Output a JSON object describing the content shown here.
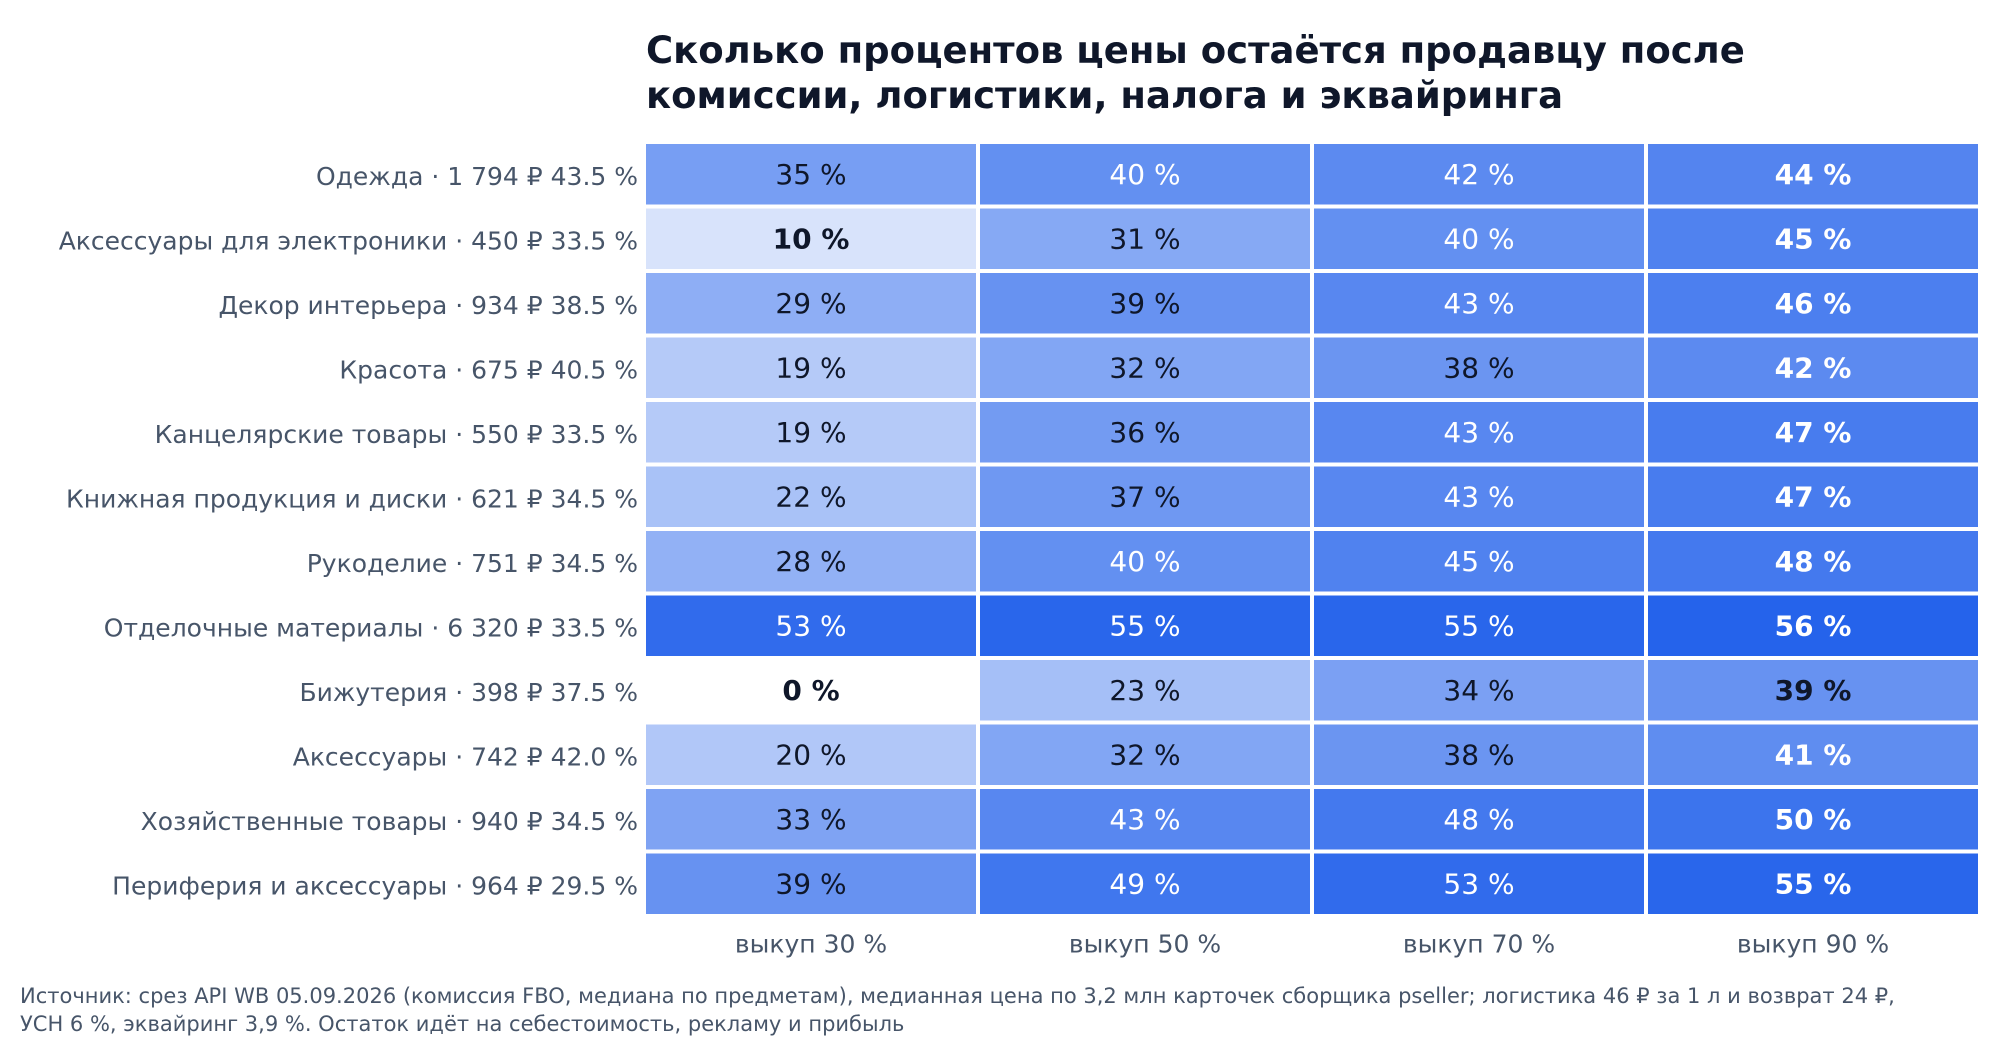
{
  "chart_data": {
    "type": "heatmap",
    "title": "Сколько процентов цены остаётся продавцу после комиссии, логистики, налога и эквайринга",
    "columns": [
      "выкуп 30 %",
      "выкуп 50 %",
      "выкуп 70 %",
      "выкуп 90 %"
    ],
    "rows": [
      {
        "label": "Одежда  ·  1 794 ₽  43.5 %",
        "values": [
          35,
          40,
          42,
          44
        ]
      },
      {
        "label": "Аксессуары для электроники  ·  450 ₽  33.5 %",
        "values": [
          10,
          31,
          40,
          45
        ]
      },
      {
        "label": "Декор интерьера  ·  934 ₽  38.5 %",
        "values": [
          29,
          39,
          43,
          46
        ]
      },
      {
        "label": "Красота  ·  675 ₽  40.5 %",
        "values": [
          19,
          32,
          38,
          42
        ]
      },
      {
        "label": "Канцелярские товары  ·  550 ₽  33.5 %",
        "values": [
          19,
          36,
          43,
          47
        ]
      },
      {
        "label": "Книжная продукция и диски  ·  621 ₽  34.5 %",
        "values": [
          22,
          37,
          43,
          47
        ]
      },
      {
        "label": "Рукоделие  ·  751 ₽  34.5 %",
        "values": [
          28,
          40,
          45,
          48
        ]
      },
      {
        "label": "Отделочные материалы  ·  6 320 ₽  33.5 %",
        "values": [
          53,
          55,
          55,
          56
        ]
      },
      {
        "label": "Бижутерия  ·  398 ₽  37.5 %",
        "values": [
          0,
          23,
          34,
          39
        ]
      },
      {
        "label": "Аксессуары  ·  742 ₽  42.0 %",
        "values": [
          20,
          32,
          38,
          41
        ]
      },
      {
        "label": "Хозяйственные товары  ·  940 ₽  34.5 %",
        "values": [
          33,
          43,
          48,
          50
        ]
      },
      {
        "label": "Периферия и аксессуары  ·  964 ₽  29.5 %",
        "values": [
          39,
          49,
          53,
          55
        ]
      }
    ],
    "value_suffix": " %",
    "color_scale": {
      "min": 0,
      "max": 56,
      "low": "#ffffff",
      "high": "#2563eb"
    },
    "highlight_bold": [
      "min-first-column",
      "max-last-column"
    ]
  },
  "source": "Источник: срез API WB 05.09.2026 (комиссия FBO, медиана по предметам), медианная цена по 3,2 млн карточек сборщика pseller; логистика 46 ₽ за 1 л и возврат 24 ₽, УСН 6 %, эквайринг 3,9 %. Остаток идёт на себестоимость, рекламу и прибыль"
}
